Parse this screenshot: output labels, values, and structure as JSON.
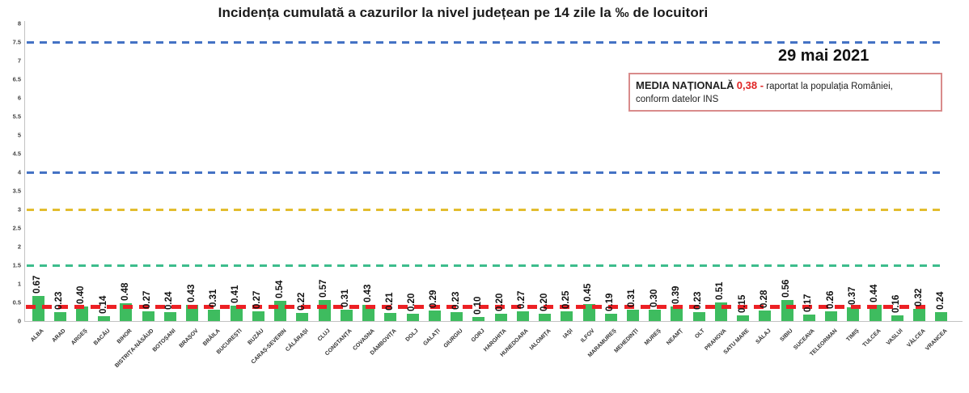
{
  "chart": {
    "title": "Incidența cumulată a cazurilor la nivel județean pe 14 zile  la ‰ de locuitori",
    "date_label": "29 mai 2021"
  },
  "annotation_box": {
    "label": "MEDIA NAȚIONALĂ",
    "value": "0,38 -",
    "value_color": "#e02424",
    "note_line1": "raportat la populația României,",
    "note_line2": "conform datelor INS",
    "border_color": "#d98b8b"
  },
  "chart_data": {
    "type": "bar",
    "title": "Incidența cumulată a cazurilor la nivel județean pe 14 zile  la ‰ de locuitori",
    "xlabel": "",
    "ylabel": "",
    "ylim": [
      0,
      8
    ],
    "ytick_step": 0.5,
    "grid": "off",
    "legend_position": "none",
    "bar_color": "#3ebc5f",
    "categories": [
      "ALBA",
      "ARAD",
      "ARGEȘ",
      "BACĂU",
      "BIHOR",
      "BISTRIȚA-NĂSĂUD",
      "BOTOȘANI",
      "BRAȘOV",
      "BRĂILA",
      "BUCUREȘTI",
      "BUZĂU",
      "CARAȘ-SEVERIN",
      "CĂLĂRAȘI",
      "CLUJ",
      "CONSTANȚA",
      "COVASNA",
      "DÂMBOVIȚA",
      "DOLJ",
      "GALAȚI",
      "GIURGIU",
      "GORJ",
      "HARGHITA",
      "HUNEDOARA",
      "IALOMIȚA",
      "IAȘI",
      "ILFOV",
      "MARAMUREȘ",
      "MEHEDINȚI",
      "MUREȘ",
      "NEAMȚ",
      "OLT",
      "PRAHOVA",
      "SATU MARE",
      "SĂLAJ",
      "SIBIU",
      "SUCEAVA",
      "TELEORMAN",
      "TIMIȘ",
      "TULCEA",
      "VASLUI",
      "VÂLCEA",
      "VRANCEA"
    ],
    "values": [
      0.67,
      0.23,
      0.4,
      0.14,
      0.48,
      0.27,
      0.24,
      0.43,
      0.31,
      0.41,
      0.27,
      0.54,
      0.22,
      0.57,
      0.31,
      0.43,
      0.21,
      0.2,
      0.29,
      0.23,
      0.1,
      0.2,
      0.27,
      0.2,
      0.25,
      0.45,
      0.19,
      0.31,
      0.3,
      0.39,
      0.23,
      0.51,
      0.15,
      0.28,
      0.56,
      0.17,
      0.26,
      0.37,
      0.44,
      0.16,
      0.32,
      0.24
    ],
    "value_labels": [
      "0.67",
      "0.23",
      "0.40",
      "0.14",
      "0.48",
      "0.27",
      "0.24",
      "0.43",
      "0.31",
      "0.41",
      "0.27",
      "0.54",
      "0.22",
      "0.57",
      "0.31",
      "0.43",
      "0.21",
      "0.20",
      "0.29",
      "0.23",
      "0.10",
      "0.20",
      "0.27",
      "0.20",
      "0.25",
      "0.45",
      "0.19",
      "0.31",
      "0.30",
      "0.39",
      "0.23",
      "0.51",
      "0.15",
      "0.28",
      "0.56",
      "0.17",
      "0.26",
      "0.37",
      "0.44",
      "0.16",
      "0.32",
      "0.24"
    ],
    "reference_lines": [
      {
        "name": "threshold-7-5",
        "value": 7.5,
        "color": "#4472c4",
        "style": "dashed",
        "emphasis": false
      },
      {
        "name": "threshold-4",
        "value": 4,
        "color": "#4472c4",
        "style": "dashed",
        "emphasis": false
      },
      {
        "name": "threshold-3",
        "value": 3,
        "color": "#e3bd2f",
        "style": "dashed",
        "emphasis": false
      },
      {
        "name": "threshold-1-5",
        "value": 1.5,
        "color": "#3dbd8c",
        "style": "dashed",
        "emphasis": false
      },
      {
        "name": "national-average",
        "value": 0.38,
        "color": "#ec2024",
        "style": "dashed",
        "emphasis": true
      }
    ]
  }
}
